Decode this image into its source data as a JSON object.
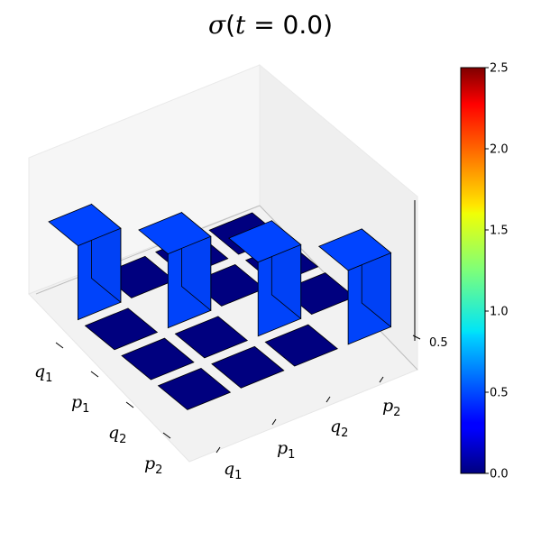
{
  "chart_data": {
    "type": "bar3d",
    "title": {
      "symbol": "σ",
      "open": "(",
      "var": "t",
      "eq": " = 0.0",
      "close": ")"
    },
    "row_labels": [
      {
        "base": "q",
        "sub": "1"
      },
      {
        "base": "p",
        "sub": "1"
      },
      {
        "base": "q",
        "sub": "2"
      },
      {
        "base": "p",
        "sub": "2"
      }
    ],
    "col_labels": [
      {
        "base": "q",
        "sub": "1"
      },
      {
        "base": "p",
        "sub": "1"
      },
      {
        "base": "q",
        "sub": "2"
      },
      {
        "base": "p",
        "sub": "2"
      }
    ],
    "matrix": [
      [
        0.5,
        0.0,
        0.0,
        0.0
      ],
      [
        0.0,
        0.5,
        0.0,
        0.0
      ],
      [
        0.0,
        0.0,
        0.5,
        0.0
      ],
      [
        0.0,
        0.0,
        0.0,
        0.5
      ]
    ],
    "z_ticks": [
      "0.5"
    ],
    "colormap": "jet",
    "colorbar": {
      "min": 0.0,
      "max": 2.5,
      "ticks": [
        "0.0",
        "0.5",
        "1.0",
        "1.5",
        "2.0",
        "2.5"
      ]
    },
    "colors": {
      "zero": "#00007f",
      "half": "#0044ff"
    }
  }
}
